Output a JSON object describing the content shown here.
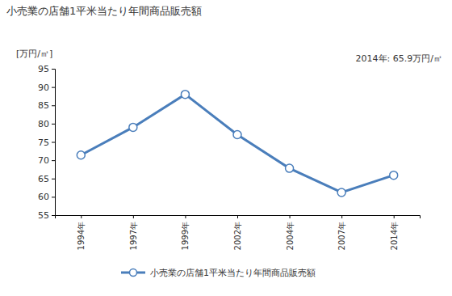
{
  "chart_data": {
    "type": "line",
    "title": "小売業の店舗1平米当たり年間商品販売額",
    "y_label": "[万円/㎡]",
    "annotation": "2014年: 65.9万円/㎡",
    "categories": [
      "1994年",
      "1997年",
      "1999年",
      "2002年",
      "2004年",
      "2007年",
      "2014年"
    ],
    "series": [
      {
        "name": "小売業の店舗1平米当たり年間商品販売額",
        "color": "#4a7ebb",
        "marker": "circle",
        "values": [
          71.4,
          79.0,
          88.0,
          77.0,
          67.8,
          61.2,
          65.9
        ]
      }
    ],
    "ylim": [
      55,
      95
    ],
    "yticks": [
      55,
      60,
      65,
      70,
      75,
      80,
      85,
      90,
      95
    ],
    "grid": false,
    "legend": "bottom"
  }
}
